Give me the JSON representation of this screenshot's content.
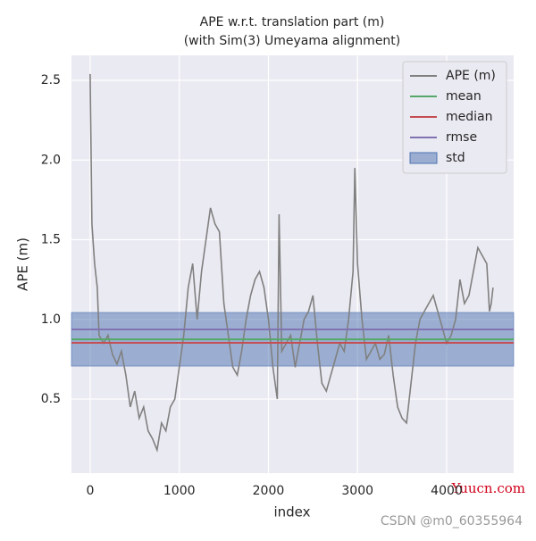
{
  "chart_data": {
    "type": "line",
    "title": "APE w.r.t. translation part (m)",
    "subtitle": "(with Sim(3) Umeyama alignment)",
    "x_label": "index",
    "y_label": "APE (m)",
    "x": [
      0,
      20,
      50,
      80,
      100,
      150,
      200,
      250,
      300,
      350,
      400,
      450,
      500,
      550,
      600,
      650,
      700,
      750,
      800,
      850,
      900,
      950,
      1000,
      1050,
      1100,
      1150,
      1200,
      1250,
      1300,
      1350,
      1400,
      1450,
      1500,
      1550,
      1600,
      1650,
      1700,
      1750,
      1800,
      1850,
      1900,
      1950,
      2000,
      2050,
      2100,
      2120,
      2150,
      2200,
      2250,
      2300,
      2350,
      2400,
      2450,
      2500,
      2550,
      2600,
      2650,
      2700,
      2750,
      2800,
      2850,
      2900,
      2950,
      2970,
      3000,
      3050,
      3100,
      3150,
      3200,
      3250,
      3300,
      3350,
      3400,
      3450,
      3500,
      3550,
      3600,
      3650,
      3700,
      3750,
      3800,
      3850,
      3900,
      3950,
      4000,
      4050,
      4100,
      4150,
      4200,
      4250,
      4300,
      4350,
      4400,
      4450,
      4480,
      4500,
      4520
    ],
    "series": [
      {
        "name": "APE (m)",
        "color": "#808080",
        "values": [
          2.54,
          1.6,
          1.35,
          1.2,
          0.9,
          0.85,
          0.9,
          0.78,
          0.72,
          0.8,
          0.65,
          0.45,
          0.55,
          0.38,
          0.45,
          0.3,
          0.25,
          0.18,
          0.35,
          0.3,
          0.45,
          0.5,
          0.7,
          0.9,
          1.2,
          1.35,
          1.0,
          1.3,
          1.5,
          1.7,
          1.6,
          1.55,
          1.1,
          0.9,
          0.7,
          0.65,
          0.8,
          1.0,
          1.15,
          1.25,
          1.3,
          1.2,
          1.0,
          0.7,
          0.5,
          1.66,
          0.8,
          0.85,
          0.9,
          0.7,
          0.85,
          1.0,
          1.05,
          1.15,
          0.85,
          0.6,
          0.55,
          0.65,
          0.75,
          0.85,
          0.8,
          1.0,
          1.3,
          1.95,
          1.35,
          1.0,
          0.75,
          0.8,
          0.85,
          0.75,
          0.78,
          0.9,
          0.65,
          0.45,
          0.38,
          0.35,
          0.6,
          0.85,
          1.0,
          1.05,
          1.1,
          1.15,
          1.05,
          0.95,
          0.85,
          0.9,
          1.0,
          1.25,
          1.1,
          1.15,
          1.3,
          1.45,
          1.4,
          1.35,
          1.05,
          1.1,
          1.2
        ]
      }
    ],
    "reference_lines": [
      {
        "name": "mean",
        "color": "#55a868",
        "value": 0.875
      },
      {
        "name": "median",
        "color": "#c44e52",
        "value": 0.853
      },
      {
        "name": "rmse",
        "color": "#8172b2",
        "value": 0.937
      }
    ],
    "std": {
      "name": "std",
      "color": "#4c72b0",
      "value": 0.168
    },
    "xlim": [
      -210,
      4752
    ],
    "ylim": [
      0.035,
      2.657
    ],
    "xticks": [
      0,
      1000,
      2000,
      3000,
      4000
    ],
    "yticks": [
      0.5,
      {
        "value": 1,
        "label": "1.0"
      },
      1.5,
      {
        "value": 2,
        "label": "2.0"
      },
      2.5
    ],
    "grid": true,
    "legend": "upper right"
  },
  "watermarks": [
    "Yuucn.com",
    "CSDN @m0_60355964"
  ]
}
